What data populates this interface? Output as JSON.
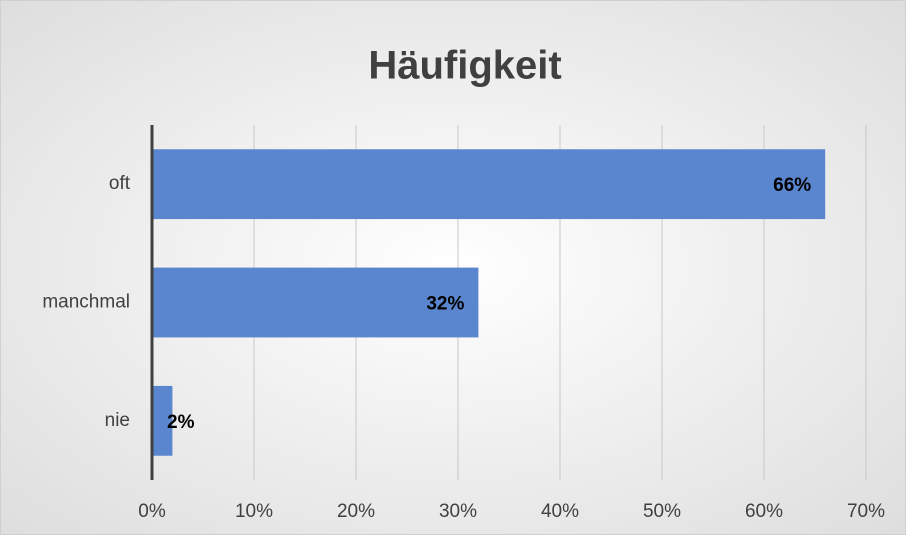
{
  "chart_data": {
    "type": "hbar",
    "title": "Häufigkeit",
    "categories": [
      "oft",
      "manchmal",
      "nie"
    ],
    "values": [
      66,
      32,
      2
    ],
    "value_labels": [
      "66%",
      "32%",
      "2%"
    ],
    "color": "#5a86cf",
    "xlim": [
      0,
      70
    ],
    "xticks": [
      {
        "value": 0,
        "label": "0%"
      },
      {
        "value": 10,
        "label": "10%"
      },
      {
        "value": 20,
        "label": "20%"
      },
      {
        "value": 30,
        "label": "30%"
      },
      {
        "value": 40,
        "label": "40%"
      },
      {
        "value": 50,
        "label": "50%"
      },
      {
        "value": 60,
        "label": "60%"
      },
      {
        "value": 70,
        "label": "70%"
      }
    ],
    "grid": true
  }
}
